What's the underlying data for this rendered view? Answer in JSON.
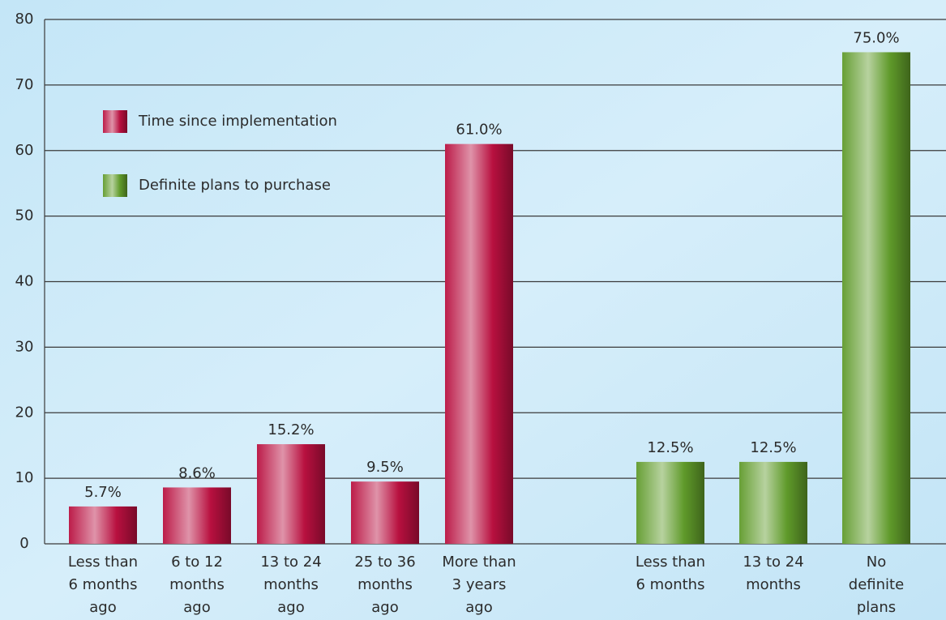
{
  "chart_data": {
    "type": "bar",
    "ylim": [
      0,
      80
    ],
    "yticks": [
      0,
      10,
      20,
      30,
      40,
      50,
      60,
      70,
      80
    ],
    "grid": true,
    "legend": "upper-left",
    "series": [
      {
        "name": "Time since implementation",
        "color": "#b8103f",
        "categories": [
          [
            "Less than",
            "6 months",
            "ago"
          ],
          [
            "6 to 12",
            "months",
            "ago"
          ],
          [
            "13 to 24",
            "months",
            "ago"
          ],
          [
            "25 to 36",
            "months",
            "ago"
          ],
          [
            "More than",
            "3 years",
            "ago"
          ]
        ],
        "values": [
          5.7,
          8.6,
          15.2,
          9.5,
          61.0
        ],
        "value_labels": [
          "5.7%",
          "8.6%",
          "15.2%",
          "9.5%",
          "61.0%"
        ]
      },
      {
        "name": "Definite plans to purchase",
        "color": "#5f9a2a",
        "categories": [
          [
            "Less than",
            "6 months"
          ],
          [
            "13 to 24",
            "months"
          ],
          [
            "No",
            "definite",
            "plans"
          ]
        ],
        "values": [
          12.5,
          12.5,
          75.0
        ],
        "value_labels": [
          "12.5%",
          "12.5%",
          "75.0%"
        ]
      }
    ]
  }
}
